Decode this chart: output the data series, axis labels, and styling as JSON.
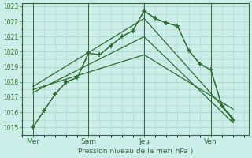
{
  "xlabel": "Pression niveau de la mer( hPa )",
  "bg_color": "#cceee8",
  "grid_color": "#aad4cc",
  "line_color": "#2d6b2d",
  "dark_line": "#1a4a1a",
  "ylim": [
    1014.5,
    1023.2
  ],
  "yticks": [
    1015,
    1016,
    1017,
    1018,
    1019,
    1020,
    1021,
    1022,
    1023
  ],
  "xtick_labels": [
    "Mer",
    "Sam",
    "Jeu",
    "Ven"
  ],
  "xtick_positions": [
    0.5,
    3.0,
    5.5,
    8.5
  ],
  "vline_positions": [
    0.5,
    3.0,
    5.5,
    8.5
  ],
  "xlim": [
    0,
    10.2
  ],
  "series_main": {
    "x": [
      0.5,
      1.0,
      1.5,
      2.0,
      2.5,
      3.0,
      3.5,
      4.0,
      4.5,
      5.0,
      5.5,
      6.0,
      6.5,
      7.0,
      7.5,
      8.0,
      8.5,
      9.0,
      9.5
    ],
    "y": [
      1015.0,
      1016.1,
      1017.2,
      1018.0,
      1018.3,
      1019.9,
      1019.8,
      1020.4,
      1021.0,
      1021.4,
      1022.7,
      1022.2,
      1021.9,
      1021.7,
      1020.1,
      1019.2,
      1018.8,
      1016.4,
      1015.5
    ]
  },
  "series_lines": [
    {
      "x": [
        0.5,
        5.5,
        9.5
      ],
      "y": [
        1017.3,
        1021.0,
        1015.3
      ]
    },
    {
      "x": [
        0.5,
        5.5,
        9.5
      ],
      "y": [
        1017.5,
        1019.8,
        1016.2
      ]
    },
    {
      "x": [
        0.5,
        5.5,
        9.5
      ],
      "y": [
        1017.7,
        1022.2,
        1015.6
      ]
    }
  ]
}
